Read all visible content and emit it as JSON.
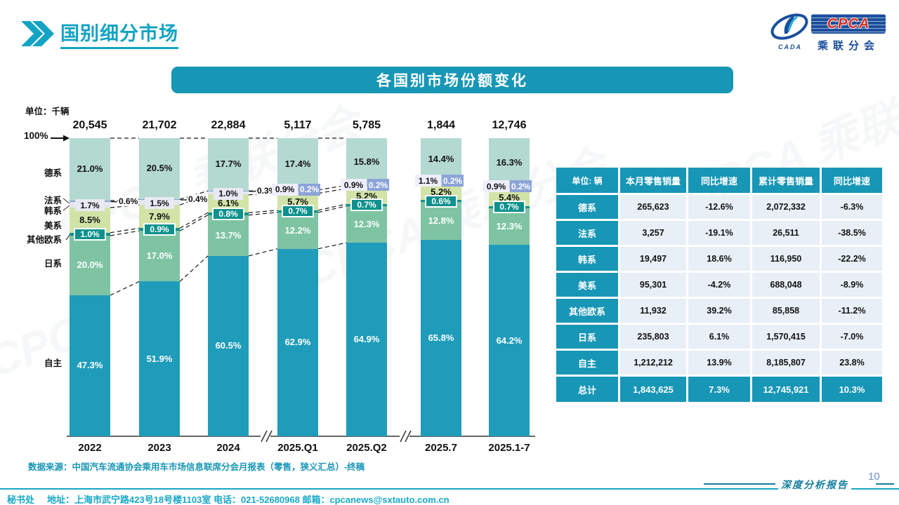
{
  "header": {
    "title": "国别细分市场"
  },
  "logo": {
    "cpca": "CPCA",
    "sub": "乘联分会",
    "emblem": "CADA"
  },
  "banner": {
    "title": "各国别市场份额变化"
  },
  "chart_data": {
    "type": "bar",
    "stacked": true,
    "value_format": "percent",
    "unit_label": "单位：千辆",
    "y_top_label": "100%",
    "ylim": [
      0,
      100
    ],
    "categories": [
      "2022",
      "2023",
      "2024",
      "2025.Q1",
      "2025.Q2",
      "2025.7",
      "2025.1-7"
    ],
    "totals": [
      "20,545",
      "21,702",
      "22,884",
      "5,117",
      "5,785",
      "1,844",
      "12,746"
    ],
    "axis_breaks_after": [
      2,
      4
    ],
    "series": [
      {
        "name": "自主",
        "key": "domestic",
        "color": "#1f9cba",
        "label_color": "#ffffff",
        "values": [
          47.3,
          51.9,
          60.5,
          62.9,
          64.9,
          65.8,
          64.2
        ]
      },
      {
        "name": "日系",
        "key": "japanese",
        "color": "#7ec4a2",
        "label_color": "#ffffff",
        "values": [
          20.0,
          17.0,
          13.7,
          12.2,
          12.3,
          12.8,
          12.3
        ]
      },
      {
        "name": "其他欧系",
        "key": "other-european",
        "color": "#0d918d",
        "label_color": "#ffffff",
        "values": [
          1.0,
          0.9,
          0.8,
          0.7,
          0.7,
          0.6,
          0.7
        ]
      },
      {
        "name": "美系",
        "key": "american",
        "color": "#d1e3a6",
        "label_color": "#111111",
        "values": [
          8.5,
          7.9,
          6.1,
          5.7,
          5.2,
          5.2,
          5.4
        ]
      },
      {
        "name": "韩系",
        "key": "korean",
        "color": "#e6e6f2",
        "label_color": "#111111",
        "values": [
          1.7,
          1.5,
          1.0,
          0.9,
          0.9,
          1.1,
          0.9
        ]
      },
      {
        "name": "法系",
        "key": "french",
        "color": "#8ba3d8",
        "label_color": "#ffffff",
        "values": [
          0.6,
          0.4,
          0.3,
          0.2,
          0.2,
          0.2,
          0.2
        ]
      },
      {
        "name": "德系",
        "key": "german",
        "color": "#b4d9d1",
        "label_color": "#111111",
        "values": [
          21.0,
          20.5,
          17.7,
          17.4,
          15.8,
          14.4,
          16.3
        ]
      }
    ],
    "legend_order_top_to_bottom": [
      "german",
      "french",
      "korean",
      "american",
      "other-european",
      "japanese",
      "domestic"
    ]
  },
  "table": {
    "unit_header": "单位: 辆",
    "columns": [
      "本月零售销量",
      "同比增速",
      "累计零售销量",
      "同比增速"
    ],
    "rows": [
      {
        "key": "german",
        "label": "德系",
        "cells": [
          "265,623",
          "-12.6%",
          "2,072,332",
          "-6.3%"
        ],
        "is_total": false
      },
      {
        "key": "french",
        "label": "法系",
        "cells": [
          "3,257",
          "-19.1%",
          "26,511",
          "-38.5%"
        ],
        "is_total": false
      },
      {
        "key": "korean",
        "label": "韩系",
        "cells": [
          "19,497",
          "18.6%",
          "116,950",
          "-22.2%"
        ],
        "is_total": false
      },
      {
        "key": "american",
        "label": "美系",
        "cells": [
          "95,301",
          "-4.2%",
          "688,048",
          "-8.9%"
        ],
        "is_total": false
      },
      {
        "key": "other-european",
        "label": "其他欧系",
        "cells": [
          "11,932",
          "39.2%",
          "85,858",
          "-11.2%"
        ],
        "is_total": false
      },
      {
        "key": "japanese",
        "label": "日系",
        "cells": [
          "235,803",
          "6.1%",
          "1,570,415",
          "-7.0%"
        ],
        "is_total": false
      },
      {
        "key": "domestic",
        "label": "自主",
        "cells": [
          "1,212,212",
          "13.9%",
          "8,185,807",
          "23.8%"
        ],
        "is_total": false
      },
      {
        "key": "total",
        "label": "总计",
        "cells": [
          "1,843,625",
          "7.3%",
          "12,745,921",
          "10.3%"
        ],
        "is_total": true
      }
    ]
  },
  "source": {
    "text": "数据来源：中国汽车流通协会乘用车市场信息联席分会月报表（零售，狭义汇总）-终稿"
  },
  "footer": {
    "secretariat": "秘书处",
    "contact": "地址：上海市武宁路423号18号楼1103室 电话：021-52680968   邮箱：cpcanews@sxtauto.com.cn",
    "report_label": "深度分析报告",
    "page_number": "10"
  },
  "colors": {
    "accent_teal": "#1796b6",
    "title_teal": "#13a3c4",
    "logo_blue": "#1a4f9c",
    "logo_red": "#d42a1e"
  }
}
